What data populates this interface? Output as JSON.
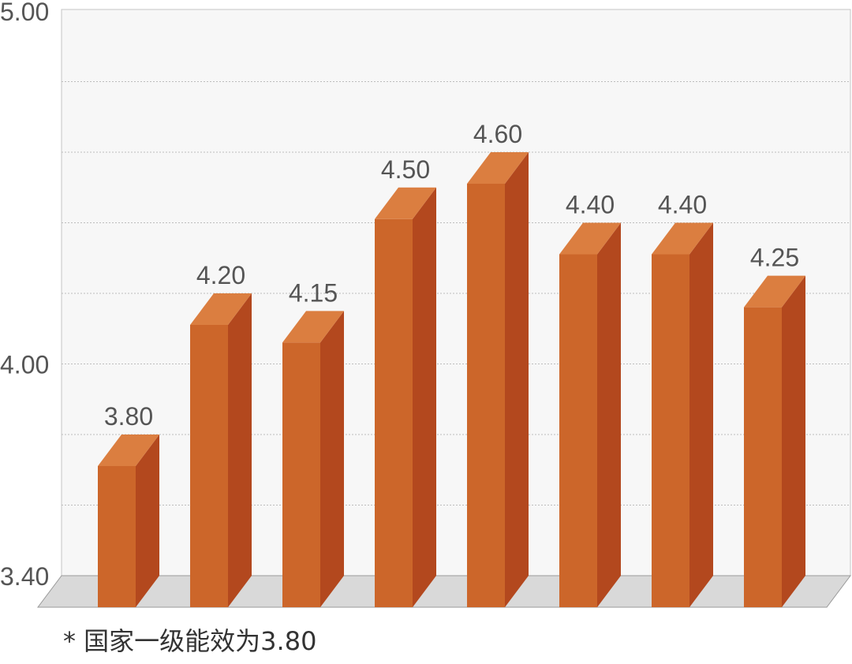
{
  "chart_data": {
    "type": "bar",
    "categories": [
      "",
      "",
      "",
      "",
      "",
      "",
      "",
      ""
    ],
    "values": [
      3.8,
      4.2,
      4.15,
      4.5,
      4.6,
      4.4,
      4.4,
      4.25
    ],
    "data_labels": [
      "3.80",
      "4.20",
      "4.15",
      "4.50",
      "4.60",
      "4.40",
      "4.40",
      "4.25"
    ],
    "y_tick_labels": [
      "3.40",
      "4.00",
      "5.00"
    ],
    "title": "",
    "xlabel": "",
    "ylabel": "",
    "ylim": [
      3.4,
      5.0
    ],
    "grid": true,
    "legend": "none",
    "style": "3d-column",
    "colors": {
      "bar_front": "#CC662A",
      "bar_side": "#B3481E",
      "bar_top": "#DB7E40",
      "floor": "#D9D9D9",
      "back_wall": "#F7F7F7",
      "label": "#555555"
    }
  },
  "footnote": "* 国家一级能效为3.80"
}
